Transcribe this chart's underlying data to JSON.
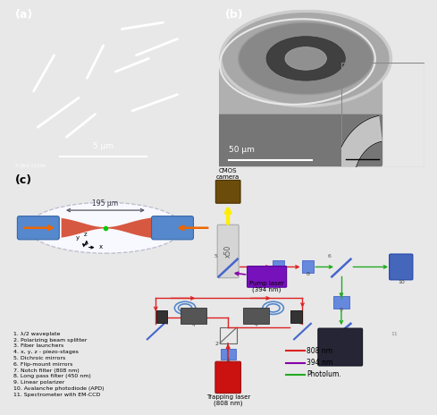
{
  "bg_color": "#e8e8e8",
  "panel_a_bg": "#999999",
  "panel_b_bg": "#888888",
  "label_a": "(a)",
  "label_b": "(b)",
  "label_c": "(c)",
  "scale_a": "5 μm",
  "scale_b": "50 μm",
  "sem_metadata": "5.0kV x110k",
  "legend_items": [
    {
      "label": "808 nm",
      "color": "#dd2222"
    },
    {
      "label": "394 nm",
      "color": "#8800aa"
    },
    {
      "label": "Photolum.",
      "color": "#22aa22"
    }
  ],
  "numbered_list": [
    "1. λ/2 waveplate",
    "2. Polarizing beam splitter",
    "3. Fiber launchers",
    "4. x, y, z - piezo-stages",
    "5. Dichroic mirrors",
    "6. Flip-mount mirrors",
    "7. Notch filter (808 nm)",
    "8. Long pass filter (450 nm)",
    "9. Linear polarizer",
    "10. Avalanche photodiode (APD)",
    "11. Spectrometer with EM-CCD"
  ],
  "trap_label": "Trapping laser\n(808 nm)",
  "pump_label": "Pump laser\n(394 nm)",
  "cmos_label": "CMOS\ncamera",
  "distance_label": "195 μm",
  "obj_label": "x50"
}
